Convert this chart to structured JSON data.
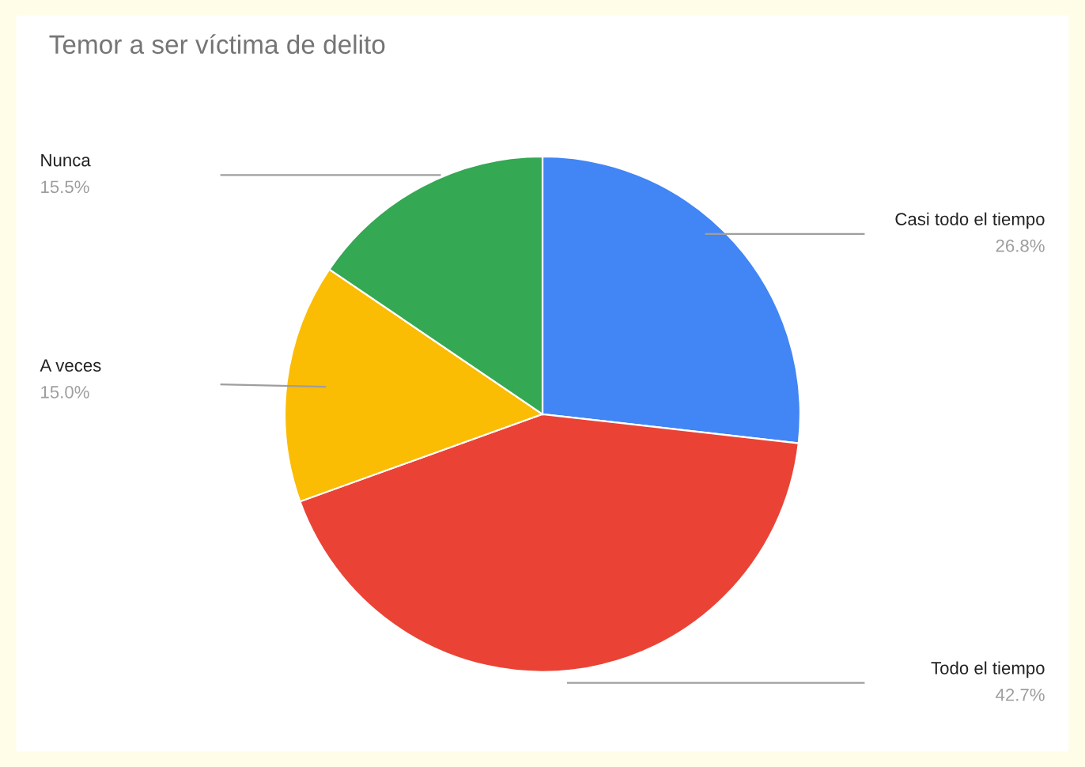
{
  "chart_data": {
    "type": "pie",
    "title": "Temor a ser víctima de delito",
    "categories": [
      "Casi todo el tiempo",
      "Todo el tiempo",
      "A veces",
      "Nunca"
    ],
    "values": [
      26.8,
      42.7,
      15.0,
      15.5
    ],
    "colors": [
      "#4285f4",
      "#ea4335",
      "#fbbc04",
      "#34a853"
    ],
    "value_labels": [
      "26.8%",
      "42.7%",
      "15.0%",
      "15.5%"
    ],
    "legend": false
  }
}
